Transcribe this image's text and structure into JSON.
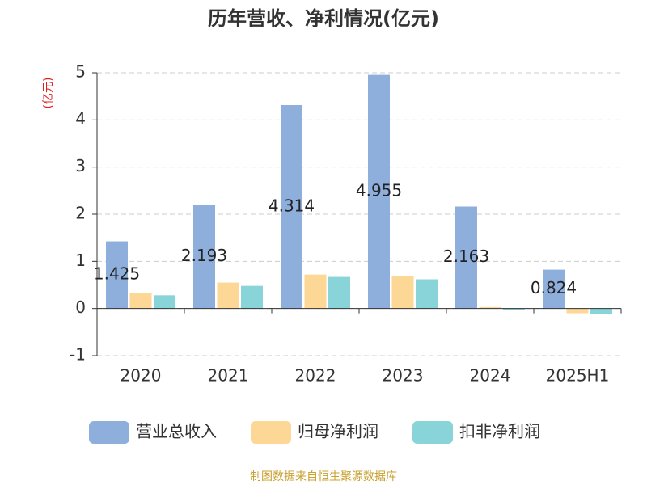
{
  "chart_data": {
    "type": "bar",
    "title": "历年营收、净利情况(亿元)",
    "y_label": "(亿元)",
    "categories": [
      "2020",
      "2021",
      "2022",
      "2023",
      "2024",
      "2025H1"
    ],
    "series": [
      {
        "name": "营业总收入",
        "color": "#8eaedc",
        "values": [
          1.425,
          2.193,
          4.314,
          4.955,
          2.163,
          0.824
        ]
      },
      {
        "name": "归母净利润",
        "color": "#fdd796",
        "values": [
          0.33,
          0.55,
          0.72,
          0.69,
          0.03,
          -0.1
        ]
      },
      {
        "name": "扣非净利润",
        "color": "#88d4d8",
        "values": [
          0.28,
          0.48,
          0.67,
          0.62,
          -0.03,
          -0.12
        ]
      }
    ],
    "labeled_series": 0,
    "ylim": [
      -1,
      5
    ],
    "yticks": [
      -1,
      0,
      1,
      2,
      3,
      4,
      5
    ],
    "grid": true,
    "legend": "bottom",
    "source": "制图数据来自恒生聚源数据库"
  }
}
